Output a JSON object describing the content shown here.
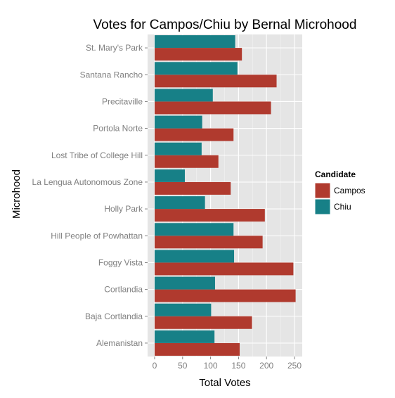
{
  "chart_data": {
    "type": "bar",
    "orientation": "horizontal",
    "title": "Votes for Campos/Chiu by Bernal Microhood",
    "xlabel": "Total Votes",
    "ylabel": "Microhood",
    "xlim": [
      0,
      260
    ],
    "xticks": [
      0,
      50,
      100,
      150,
      200,
      250
    ],
    "grid": true,
    "legend": {
      "title": "Candidate",
      "position": "right"
    },
    "categories": [
      "Alemanistan",
      "Baja Cortlandia",
      "Cortlandia",
      "Foggy Vista",
      "Hill People of Powhattan",
      "Holly Park",
      "La Lengua Autonomous Zone",
      "Lost Tribe of College Hill",
      "Portola Norte",
      "Precitaville",
      "Santana Rancho",
      "St. Mary's Park"
    ],
    "series": [
      {
        "name": "Campos",
        "color": "#B03A2E",
        "values": [
          152,
          174,
          252,
          248,
          193,
          197,
          136,
          114,
          141,
          208,
          218,
          156
        ]
      },
      {
        "name": "Chiu",
        "color": "#178087",
        "values": [
          107,
          101,
          108,
          142,
          141,
          90,
          54,
          84,
          85,
          104,
          148,
          144
        ]
      }
    ]
  }
}
